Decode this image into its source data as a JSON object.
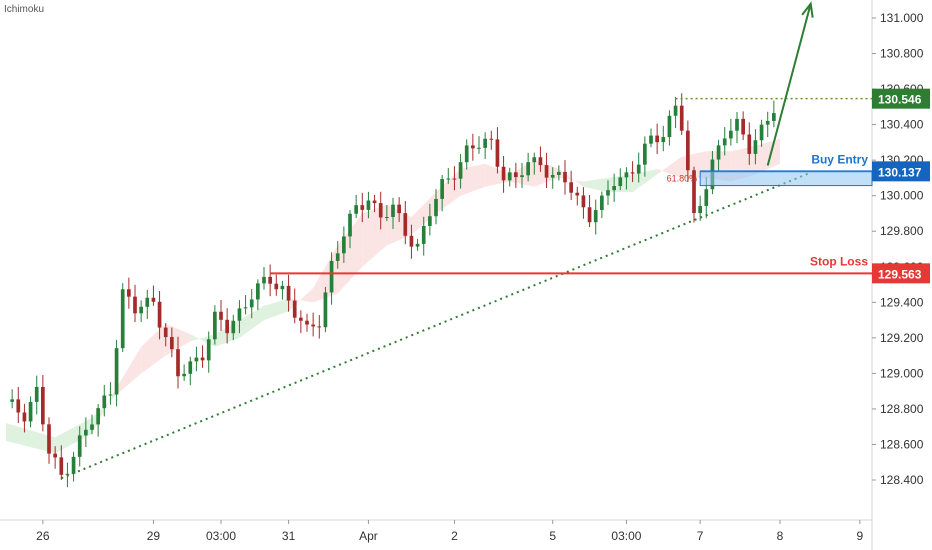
{
  "indicator": {
    "label": "Ichimoku"
  },
  "chart_data": {
    "type": "candlestick",
    "price_axis": {
      "ylim": [
        128.2,
        131.12
      ],
      "ticks": [
        "131.000",
        "130.800",
        "130.600",
        "130.400",
        "130.200",
        "130.000",
        "129.800",
        "129.600",
        "129.400",
        "129.200",
        "129.000",
        "128.800",
        "128.600",
        "128.400"
      ],
      "tick_values": [
        131.0,
        130.8,
        130.6,
        130.4,
        130.2,
        130.0,
        129.8,
        129.6,
        129.4,
        129.2,
        129.0,
        128.8,
        128.6,
        128.4
      ]
    },
    "time_axis": {
      "ticks": [
        "26",
        "29",
        "03:00",
        "31",
        "Apr",
        "2",
        "5",
        "03:00",
        "7",
        "8",
        "9"
      ],
      "tick_index": [
        6,
        24,
        35,
        46,
        59,
        73,
        89,
        101,
        113,
        126,
        139
      ]
    },
    "bar_count": 140,
    "levels": [
      {
        "name": "resistance",
        "price": 130.546,
        "label": "130.546",
        "badge_color": "#2e7d32",
        "line_color": "#6b8e23",
        "style": "dotted"
      },
      {
        "name": "buy-entry",
        "price": 130.137,
        "label": "130.137",
        "title": "Buy Entry",
        "badge_color": "#1565c0",
        "line_color": "#1976d2",
        "style": "solid"
      },
      {
        "name": "stop-loss",
        "price": 129.563,
        "label": "129.563",
        "title": "Stop Loss",
        "badge_color": "#e53935",
        "line_color": "#e53935",
        "style": "solid"
      }
    ],
    "fib_label": "61.80%",
    "trendline": {
      "from": [
        9,
        128.41
      ],
      "to": [
        131,
        130.13
      ],
      "color": "#2e7d32",
      "style": "dotted"
    },
    "arrow": {
      "from": [
        124,
        130.17
      ],
      "to": [
        131,
        131.08
      ],
      "color": "#2e7d32"
    },
    "colors": {
      "up": "#26803a",
      "down": "#a52a2a",
      "cloud_bull": "#dff1df",
      "cloud_bear": "#fbe4e4"
    },
    "anchors": [
      [
        0,
        128.82
      ],
      [
        3,
        128.78
      ],
      [
        5,
        128.9
      ],
      [
        7,
        128.55
      ],
      [
        9,
        128.42
      ],
      [
        12,
        128.62
      ],
      [
        15,
        128.78
      ],
      [
        17,
        128.92
      ],
      [
        19,
        129.45
      ],
      [
        21,
        129.35
      ],
      [
        24,
        129.42
      ],
      [
        26,
        129.2
      ],
      [
        28,
        128.98
      ],
      [
        30,
        129.05
      ],
      [
        32,
        129.12
      ],
      [
        34,
        129.3
      ],
      [
        36,
        129.25
      ],
      [
        38,
        129.35
      ],
      [
        40,
        129.45
      ],
      [
        43,
        129.52
      ],
      [
        45,
        129.48
      ],
      [
        47,
        129.35
      ],
      [
        49,
        129.22
      ],
      [
        51,
        129.3
      ],
      [
        53,
        129.62
      ],
      [
        55,
        129.78
      ],
      [
        57,
        129.92
      ],
      [
        59,
        130.0
      ],
      [
        61,
        129.88
      ],
      [
        63,
        129.92
      ],
      [
        65,
        129.8
      ],
      [
        67,
        129.72
      ],
      [
        69,
        129.9
      ],
      [
        71,
        130.05
      ],
      [
        73,
        130.15
      ],
      [
        75,
        130.25
      ],
      [
        77,
        130.28
      ],
      [
        79,
        130.3
      ],
      [
        81,
        130.12
      ],
      [
        83,
        130.08
      ],
      [
        85,
        130.18
      ],
      [
        87,
        130.2
      ],
      [
        89,
        130.1
      ],
      [
        91,
        130.08
      ],
      [
        93,
        129.98
      ],
      [
        95,
        129.9
      ],
      [
        97,
        129.95
      ],
      [
        99,
        130.08
      ],
      [
        101,
        130.12
      ],
      [
        103,
        130.2
      ],
      [
        105,
        130.3
      ],
      [
        107,
        130.35
      ],
      [
        109,
        130.52
      ],
      [
        110,
        130.4
      ],
      [
        111,
        130.12
      ],
      [
        112,
        129.85
      ],
      [
        113,
        129.95
      ],
      [
        115,
        130.2
      ],
      [
        117,
        130.35
      ],
      [
        119,
        130.38
      ],
      [
        121,
        130.28
      ],
      [
        123,
        130.38
      ],
      [
        125,
        130.48
      ]
    ],
    "cloud": [
      [
        0,
        128.72,
        128.62
      ],
      [
        8,
        128.64,
        128.55
      ],
      [
        14,
        128.75,
        128.66
      ],
      [
        18,
        128.88,
        128.92
      ],
      [
        22,
        129.0,
        129.15
      ],
      [
        26,
        129.1,
        129.28
      ],
      [
        30,
        129.18,
        129.22
      ],
      [
        34,
        129.22,
        129.15
      ],
      [
        38,
        129.3,
        129.2
      ],
      [
        42,
        129.38,
        129.3
      ],
      [
        46,
        129.42,
        129.35
      ],
      [
        50,
        129.4,
        129.48
      ],
      [
        54,
        129.45,
        129.72
      ],
      [
        58,
        129.6,
        129.9
      ],
      [
        62,
        129.72,
        129.95
      ],
      [
        66,
        129.78,
        129.88
      ],
      [
        70,
        129.9,
        130.02
      ],
      [
        74,
        130.0,
        130.15
      ],
      [
        78,
        130.05,
        130.18
      ],
      [
        82,
        130.08,
        130.12
      ],
      [
        86,
        130.05,
        130.2
      ],
      [
        90,
        130.1,
        130.15
      ],
      [
        94,
        130.08,
        130.05
      ],
      [
        98,
        130.1,
        130.02
      ],
      [
        102,
        130.12,
        130.02
      ],
      [
        106,
        130.15,
        130.12
      ],
      [
        110,
        130.1,
        130.22
      ],
      [
        114,
        130.1,
        130.25
      ],
      [
        118,
        130.08,
        130.25
      ],
      [
        122,
        130.12,
        130.28
      ],
      [
        126,
        130.18,
        130.32
      ]
    ]
  }
}
